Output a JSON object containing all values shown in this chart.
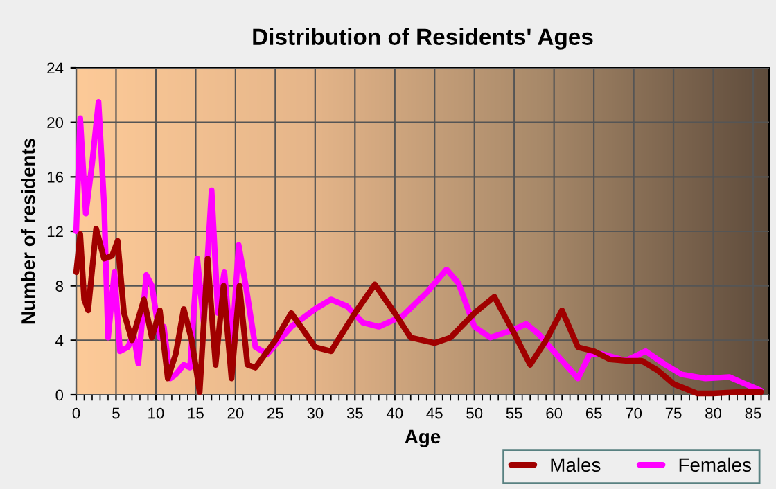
{
  "chart_data": {
    "type": "line",
    "title": "Distribution of Residents' Ages",
    "xlabel": "Age",
    "ylabel": "Number of residents",
    "xlim": [
      0,
      87
    ],
    "xticks": [
      0,
      5,
      10,
      15,
      20,
      25,
      30,
      35,
      40,
      45,
      50,
      55,
      60,
      65,
      70,
      75,
      80,
      85
    ],
    "ylim": [
      0,
      24
    ],
    "yticks": [
      0,
      4,
      8,
      12,
      16,
      20,
      24
    ],
    "grid": true,
    "legend": "bottom right",
    "line_style": "solid",
    "series": [
      {
        "name": "Males",
        "color": "#a00000",
        "x": [
          0,
          0.5,
          1,
          1.5,
          2.5,
          3.5,
          4.5,
          5.2,
          6,
          7,
          8.5,
          9.5,
          10.5,
          11.5,
          12.5,
          13.5,
          14.5,
          15.5,
          16.5,
          17.5,
          18.5,
          19.5,
          20.5,
          21.5,
          22.5,
          25,
          27,
          30,
          32,
          35,
          37.5,
          40,
          42,
          45,
          47,
          50,
          52.5,
          55,
          57,
          59,
          61,
          63,
          65,
          67,
          69,
          71,
          73,
          75,
          78,
          80,
          83,
          86
        ],
        "values": [
          9,
          11.8,
          7,
          6.2,
          12.2,
          10,
          10.2,
          11.3,
          6,
          4,
          7,
          4.2,
          6.2,
          1.2,
          3,
          6.3,
          4,
          0.2,
          10,
          2.2,
          8,
          1.2,
          8,
          2.2,
          2,
          4,
          6,
          3.5,
          3.2,
          6,
          8.1,
          6,
          4.2,
          3.8,
          4.2,
          6,
          7.2,
          4.5,
          2.2,
          4,
          6.2,
          3.5,
          3.2,
          2.6,
          2.5,
          2.5,
          1.8,
          0.8,
          0.1,
          0.1,
          0.2,
          0.2
        ]
      },
      {
        "name": "Females",
        "color": "#ff00ff",
        "x": [
          0,
          0.5,
          1.2,
          2,
          2.8,
          3.5,
          4,
          4.8,
          5.5,
          6.5,
          7.2,
          7.8,
          8.8,
          9.5,
          10.5,
          11,
          11.8,
          12.5,
          13.5,
          14.3,
          15.2,
          16,
          17,
          17.8,
          18.6,
          19.5,
          20.4,
          21.3,
          22.5,
          24,
          27,
          30,
          32,
          34,
          36,
          38,
          41,
          44,
          46.5,
          48,
          50,
          52,
          55,
          56.5,
          58,
          61,
          63,
          64.5,
          66,
          69,
          71.5,
          74,
          76,
          79,
          82,
          84,
          86
        ],
        "values": [
          12,
          20.3,
          13.3,
          17,
          21.5,
          14,
          4.2,
          9,
          3.2,
          3.5,
          4.5,
          2.3,
          8.8,
          8,
          4.2,
          5,
          1.2,
          1.5,
          2.2,
          2,
          10,
          5.3,
          15,
          6,
          9,
          3.2,
          11,
          8,
          3.5,
          3,
          5,
          6.3,
          7,
          6.5,
          5.3,
          5,
          5.8,
          7.5,
          9.2,
          8.2,
          5,
          4.2,
          4.8,
          5.2,
          4.5,
          2.5,
          1.2,
          3,
          3,
          2.5,
          3.2,
          2.2,
          1.5,
          1.2,
          1.3,
          0.8,
          0.3
        ]
      }
    ]
  }
}
